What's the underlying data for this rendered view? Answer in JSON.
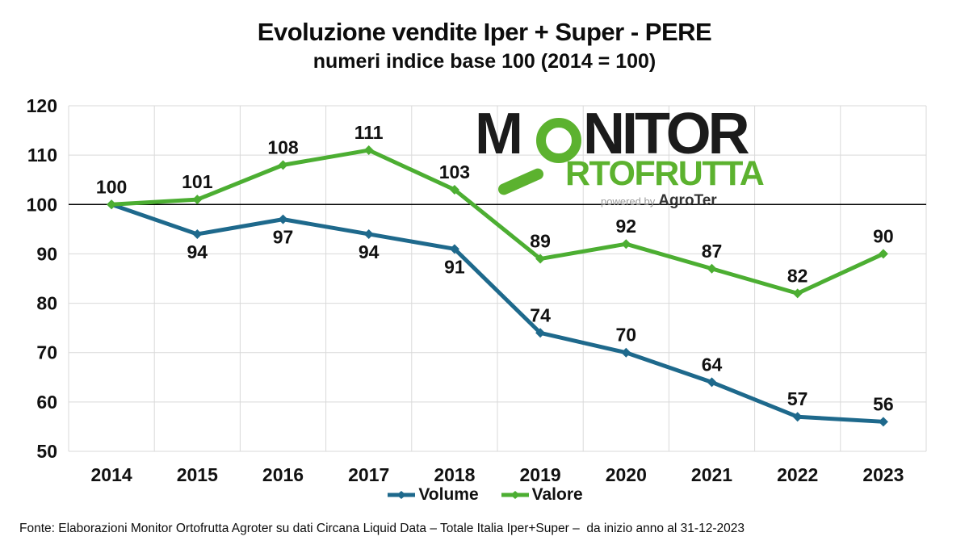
{
  "logo": {
    "m": "M",
    "nitor": "NITOR",
    "row2": "RTOFRUTTA",
    "powered_by": "powered by",
    "brand": "AgroTer",
    "green": "#5CB22F",
    "black": "#1b1b1b"
  },
  "footer": {
    "source": "Fonte: Elaborazioni Monitor Ortofrutta Agroter su dati Circana Liquid Data – Totale Italia Iper+Super –  da inizio anno al 31-12-2023"
  },
  "chart_data": {
    "type": "line",
    "title": "Evoluzione vendite Iper + Super - PERE",
    "subtitle": "numeri indice base 100 (2014 = 100)",
    "categories": [
      "2014",
      "2015",
      "2016",
      "2017",
      "2018",
      "2019",
      "2020",
      "2021",
      "2022",
      "2023"
    ],
    "series": [
      {
        "name": "Volume",
        "color": "#1E698C",
        "values": [
          100,
          94,
          97,
          94,
          91,
          74,
          70,
          64,
          57,
          56
        ],
        "label_sides": [
          "none",
          "below",
          "below",
          "below",
          "below",
          "above",
          "above",
          "above",
          "above",
          "above"
        ]
      },
      {
        "name": "Valore",
        "color": "#4CAE32",
        "values": [
          100,
          101,
          108,
          111,
          103,
          89,
          92,
          87,
          82,
          90
        ],
        "label_sides": [
          "above",
          "above",
          "above",
          "above",
          "above",
          "above",
          "above",
          "above",
          "above",
          "above"
        ]
      }
    ],
    "xlabel": "",
    "ylabel": "",
    "ylim": [
      50,
      120
    ],
    "ytick_step": 10,
    "baseline": 100,
    "grid": true,
    "grid_color": "#d9d9d9",
    "axis_text_color": "#111111",
    "legend_position": "bottom"
  }
}
